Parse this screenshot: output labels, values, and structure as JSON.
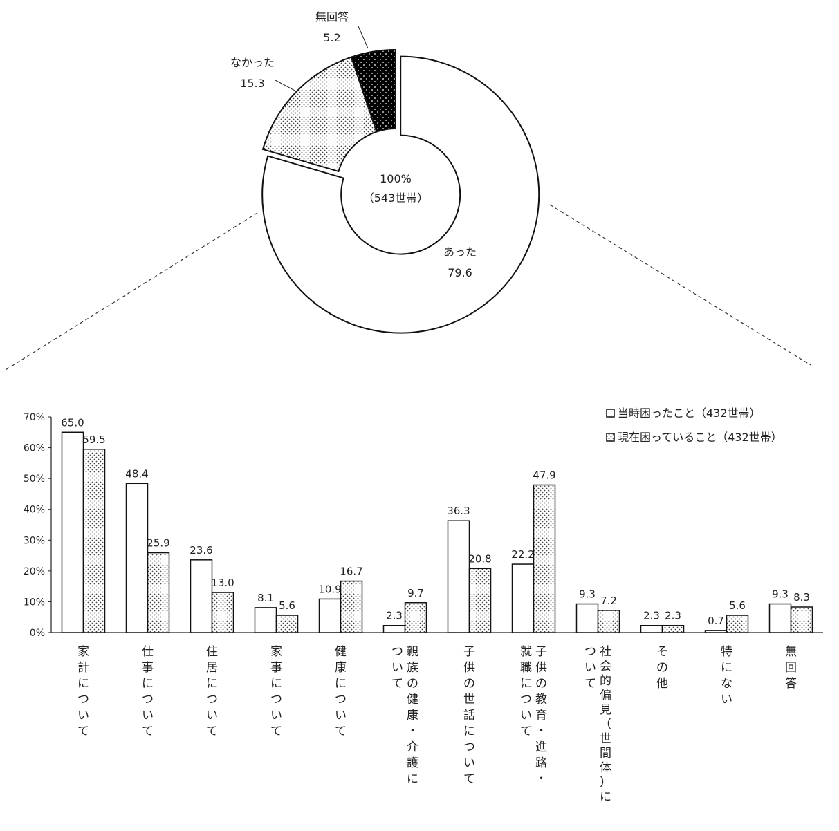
{
  "chart_data": [
    {
      "type": "pie",
      "style": "donut",
      "center_label": "100%",
      "center_sublabel": "（543世帯）",
      "slices": [
        {
          "label": "あった",
          "value": 79.6,
          "value_label": "79.6",
          "fill": "white"
        },
        {
          "label": "なかった",
          "value": 15.3,
          "value_label": "15.3",
          "fill": "dots"
        },
        {
          "label": "無回答",
          "value": 5.2,
          "value_label": "5.2",
          "fill": "black-dots"
        }
      ]
    },
    {
      "type": "bar",
      "ylim": [
        0,
        70
      ],
      "y_ticks": [
        "0%",
        "10%",
        "20%",
        "30%",
        "40%",
        "50%",
        "60%",
        "70%"
      ],
      "legend_position": "top-right",
      "categories": [
        {
          "col1": "家計について"
        },
        {
          "col1": "仕事について"
        },
        {
          "col1": "住居について"
        },
        {
          "col1": "家事について"
        },
        {
          "col1": "健康について"
        },
        {
          "col1": "親族の健康・介護に",
          "col2": "ついて"
        },
        {
          "col1": "子供の世話について"
        },
        {
          "col1": "子供の教育・進路・",
          "col2": "就職について"
        },
        {
          "col1": "社会的偏見（世間体）に",
          "col2": "ついて"
        },
        {
          "col1": "その他"
        },
        {
          "col1": "特にない"
        },
        {
          "col1": "無回答"
        }
      ],
      "series": [
        {
          "name": "当時困ったこと（432世帯）",
          "fill": "white",
          "values": [
            65.0,
            48.4,
            23.6,
            8.1,
            10.9,
            2.3,
            36.3,
            22.2,
            9.3,
            2.3,
            0.7,
            9.3
          ],
          "labels": [
            "65.0",
            "48.4",
            "23.6",
            "8.1",
            "10.9",
            "2.3",
            "36.3",
            "22.2",
            "9.3",
            "2.3",
            "0.7",
            "9.3"
          ]
        },
        {
          "name": "現在困っていること（432世帯）",
          "fill": "dots",
          "values": [
            59.5,
            25.9,
            13.0,
            5.6,
            16.7,
            9.7,
            20.8,
            47.9,
            7.2,
            2.3,
            5.6,
            8.3
          ],
          "labels": [
            "59.5",
            "25.9",
            "13.0",
            "5.6",
            "16.7",
            "9.7",
            "20.8",
            "47.9",
            "7.2",
            "2.3",
            "5.6",
            "8.3"
          ]
        }
      ]
    }
  ]
}
